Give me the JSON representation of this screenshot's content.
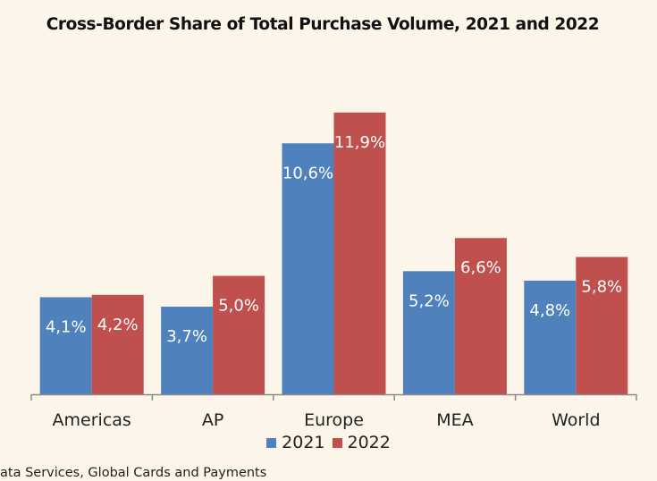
{
  "chart_data": {
    "type": "bar",
    "title": "Cross-Border Share of Total Purchase Volume, 2021 and 2022",
    "categories": [
      "Americas",
      "AP",
      "Europe",
      "MEA",
      "World"
    ],
    "series": [
      {
        "name": "2021",
        "color": "#4f81bd",
        "values": [
          4.1,
          3.7,
          10.6,
          5.2,
          4.8
        ],
        "labels": [
          "4,1%",
          "3,7%",
          "10,6%",
          "5,2%",
          "4,8%"
        ]
      },
      {
        "name": "2022",
        "color": "#c0504d",
        "values": [
          4.2,
          5.0,
          11.9,
          6.6,
          5.8
        ],
        "labels": [
          "4,2%",
          "5,0%",
          "11,9%",
          "6,6%",
          "5,8%"
        ]
      }
    ],
    "xlabel": "",
    "ylabel": "",
    "ylim": [
      0,
      12.5
    ],
    "grid": false,
    "legend_position": "bottom",
    "axis_color": "#8a8a8a"
  },
  "source_note": "ata Services, Global Cards and Payments"
}
